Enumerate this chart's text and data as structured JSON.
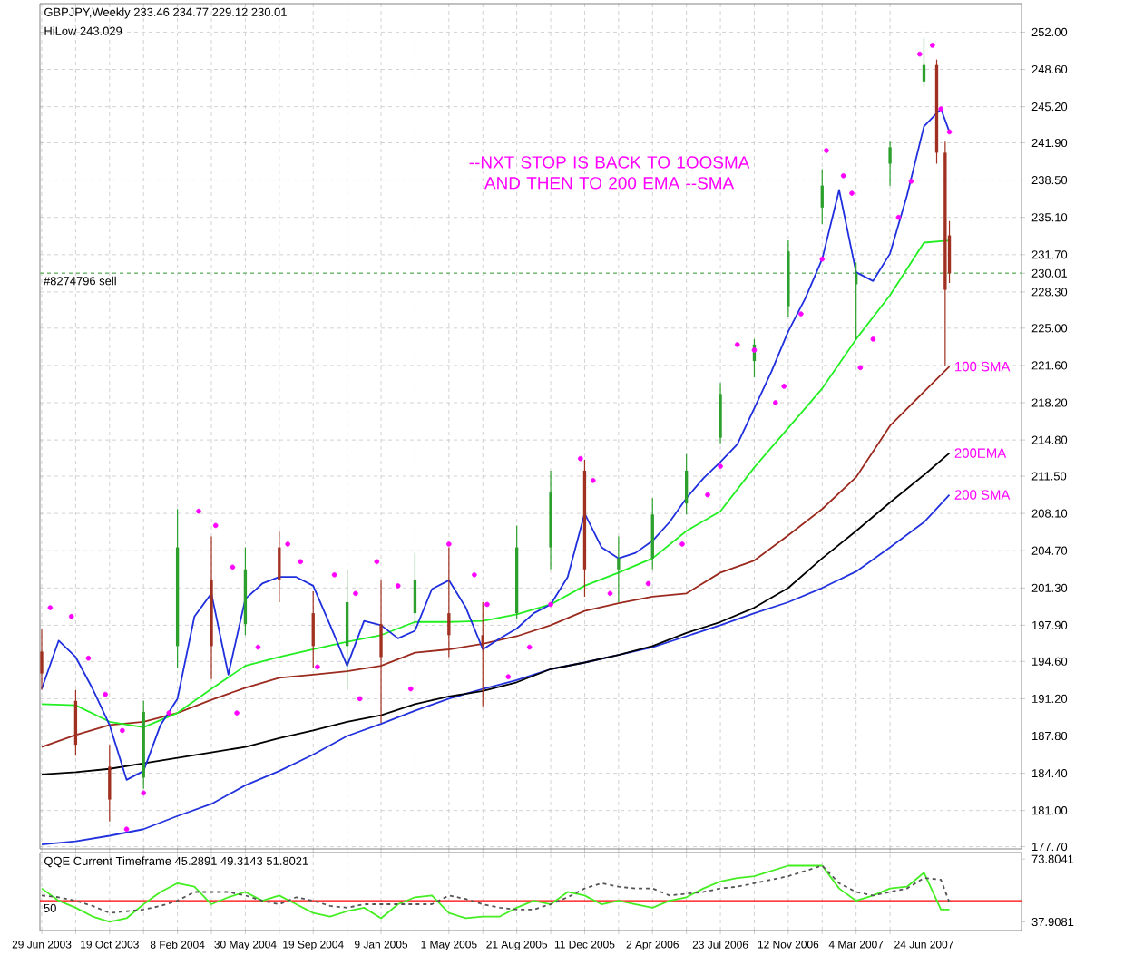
{
  "chart_data": [
    {
      "type": "candlestick",
      "title": "GBPJPY,Weekly  233.46 234.77 229.12 230.01",
      "subtitle": "HiLow 243.029",
      "annotations": [
        "--NXT STOP IS BACK TO 1OOSMA AND THEN TO 200 EMA --SMA"
      ],
      "x": [
        "2003-06-29",
        "2003-08-24",
        "2003-10-19",
        "2003-12-14",
        "2004-02-08",
        "2004-04-04",
        "2004-05-30",
        "2004-07-25",
        "2004-09-19",
        "2004-11-14",
        "2005-01-09",
        "2005-03-06",
        "2005-05-01",
        "2005-06-26",
        "2005-08-21",
        "2005-10-16",
        "2005-12-11",
        "2006-02-05",
        "2006-04-02",
        "2006-05-28",
        "2006-07-23",
        "2006-09-17",
        "2006-11-12",
        "2007-01-07",
        "2007-03-04",
        "2007-04-29",
        "2007-06-24",
        "2007-07-15",
        "2007-07-29",
        "2007-08-05"
      ],
      "ohlc": [
        [
          195.5,
          197.5,
          192,
          193.5
        ],
        [
          191,
          192,
          186,
          187
        ],
        [
          185,
          187,
          180,
          182
        ],
        [
          184,
          191,
          183,
          190
        ],
        [
          196,
          208.5,
          194,
          205
        ],
        [
          202,
          206,
          193,
          196
        ],
        [
          198,
          205,
          197,
          203
        ],
        [
          205,
          206.5,
          200,
          202
        ],
        [
          199,
          201,
          194,
          196
        ],
        [
          196,
          203,
          192,
          200
        ],
        [
          198,
          202,
          189,
          195
        ],
        [
          199,
          204.5,
          197.5,
          202
        ],
        [
          199,
          205,
          195,
          197
        ],
        [
          197,
          200,
          190.5,
          196
        ],
        [
          199,
          207,
          198.5,
          205
        ],
        [
          205,
          212,
          203,
          210
        ],
        [
          212,
          213,
          200.5,
          203
        ],
        [
          203,
          206,
          200,
          204
        ],
        [
          204,
          209.5,
          203,
          208
        ],
        [
          209,
          213.5,
          208,
          212
        ],
        [
          215,
          220,
          214.5,
          219
        ],
        [
          222,
          224,
          220.5,
          223.5
        ],
        [
          227,
          233,
          226,
          232
        ],
        [
          236,
          239.5,
          234.5,
          238
        ],
        [
          229,
          231,
          224,
          230
        ],
        [
          240,
          242,
          238,
          241.5
        ],
        [
          247.5,
          251.5,
          247,
          249
        ],
        [
          249,
          249.5,
          240,
          241
        ],
        [
          241,
          242,
          221.5,
          228.5
        ],
        [
          233.46,
          234.77,
          229.12,
          230.01
        ]
      ],
      "colors": [
        "#a03020",
        "#a03020",
        "#a03020",
        "#2ca02c",
        "#2ca02c",
        "#a03020",
        "#2ca02c",
        "#a03020",
        "#a03020",
        "#2ca02c",
        "#a03020",
        "#2ca02c",
        "#a03020",
        "#a03020",
        "#2ca02c",
        "#2ca02c",
        "#a03020",
        "#2ca02c",
        "#2ca02c",
        "#2ca02c",
        "#2ca02c",
        "#2ca02c",
        "#2ca02c",
        "#2ca02c",
        "#2ca02c",
        "#2ca02c",
        "#2ca02c",
        "#a03020",
        "#a03020",
        "#a03020"
      ],
      "series": [
        {
          "name": "200 SMA",
          "type": "line",
          "color": "#2233dd",
          "x": [
            "2003-06-29",
            "2003-08-24",
            "2003-10-19",
            "2003-12-14",
            "2004-02-08",
            "2004-04-04",
            "2004-05-30",
            "2004-07-25",
            "2004-09-19",
            "2004-11-14",
            "2005-01-09",
            "2005-03-06",
            "2005-05-01",
            "2005-06-26",
            "2005-08-21",
            "2005-10-16",
            "2005-12-11",
            "2006-02-05",
            "2006-04-02",
            "2006-05-28",
            "2006-07-23",
            "2006-09-17",
            "2006-11-12",
            "2007-01-07",
            "2007-03-04",
            "2007-04-29",
            "2007-06-24",
            "2007-08-05"
          ],
          "values": [
            177.9,
            178.2,
            178.7,
            179.3,
            180.5,
            181.6,
            183.3,
            184.6,
            186.1,
            187.8,
            188.9,
            190.1,
            191.2,
            192.1,
            192.9,
            193.9,
            194.5,
            195.2,
            195.9,
            196.9,
            197.9,
            199.0,
            200.0,
            201.3,
            202.8,
            205.0,
            207.3,
            209.8
          ]
        },
        {
          "name": "200EMA",
          "type": "line",
          "color": "#000000",
          "x": [
            "2003-06-29",
            "2003-08-24",
            "2003-10-19",
            "2003-12-14",
            "2004-02-08",
            "2004-04-04",
            "2004-05-30",
            "2004-07-25",
            "2004-09-19",
            "2004-11-14",
            "2005-01-09",
            "2005-03-06",
            "2005-05-01",
            "2005-06-26",
            "2005-08-21",
            "2005-10-16",
            "2005-12-11",
            "2006-02-05",
            "2006-04-02",
            "2006-05-28",
            "2006-07-23",
            "2006-09-17",
            "2006-11-12",
            "2007-01-07",
            "2007-03-04",
            "2007-04-29",
            "2007-06-24",
            "2007-08-05"
          ],
          "values": [
            184.3,
            184.5,
            184.8,
            185.3,
            185.8,
            186.3,
            186.8,
            187.6,
            188.3,
            189.1,
            189.7,
            190.7,
            191.4,
            191.9,
            192.7,
            193.9,
            194.5,
            195.2,
            196.0,
            197.2,
            198.2,
            199.5,
            201.3,
            204.0,
            206.5,
            209.1,
            211.6,
            213.6
          ]
        },
        {
          "name": "100 SMA",
          "type": "line",
          "color": "#9b2a1f",
          "x": [
            "2003-06-29",
            "2003-08-24",
            "2003-10-19",
            "2003-12-14",
            "2004-02-08",
            "2004-04-04",
            "2004-05-30",
            "2004-07-25",
            "2004-09-19",
            "2004-11-14",
            "2005-01-09",
            "2005-03-06",
            "2005-05-01",
            "2005-06-26",
            "2005-08-21",
            "2005-10-16",
            "2005-12-11",
            "2006-02-05",
            "2006-04-02",
            "2006-05-28",
            "2006-07-23",
            "2006-09-17",
            "2006-11-12",
            "2007-01-07",
            "2007-03-04",
            "2007-04-29",
            "2007-06-24",
            "2007-08-05"
          ],
          "values": [
            186.8,
            187.9,
            188.8,
            189.1,
            189.9,
            191.1,
            192.2,
            193.1,
            193.4,
            193.7,
            194.2,
            195.4,
            195.7,
            196.2,
            196.9,
            197.9,
            199.2,
            199.9,
            200.5,
            200.8,
            202.7,
            203.8,
            206.1,
            208.5,
            211.4,
            216.1,
            219.2,
            221.5
          ]
        },
        {
          "type": "line",
          "color": "#22ee22",
          "x": [
            "2003-06-29",
            "2003-08-24",
            "2003-10-19",
            "2003-12-14",
            "2004-02-08",
            "2004-04-04",
            "2004-05-30",
            "2004-07-25",
            "2004-09-19",
            "2004-11-14",
            "2005-01-09",
            "2005-03-06",
            "2005-05-01",
            "2005-06-26",
            "2005-08-21",
            "2005-10-16",
            "2005-12-11",
            "2006-02-05",
            "2006-04-02",
            "2006-05-28",
            "2006-07-23",
            "2006-09-17",
            "2006-11-12",
            "2007-01-07",
            "2007-03-04",
            "2007-04-29",
            "2007-06-24",
            "2007-08-05"
          ],
          "values": [
            190.7,
            190.6,
            189.1,
            188.6,
            189.9,
            192.1,
            194.2,
            195.0,
            195.7,
            196.4,
            197.0,
            198.2,
            198.2,
            198.3,
            198.9,
            199.8,
            201.5,
            202.7,
            204.0,
            206.5,
            208.3,
            212.3,
            215.9,
            219.5,
            224.0,
            228.0,
            232.8,
            233.0
          ]
        },
        {
          "type": "line",
          "color": "#1f2fdd",
          "x": [
            "2003-06-29",
            "2003-07-27",
            "2003-08-24",
            "2003-09-21",
            "2003-10-19",
            "2003-11-16",
            "2003-12-14",
            "2004-01-11",
            "2004-02-08",
            "2004-03-07",
            "2004-04-04",
            "2004-05-02",
            "2004-05-30",
            "2004-06-27",
            "2004-07-25",
            "2004-08-22",
            "2004-09-19",
            "2004-10-17",
            "2004-11-14",
            "2004-12-12",
            "2005-01-09",
            "2005-02-06",
            "2005-03-06",
            "2005-04-03",
            "2005-05-01",
            "2005-05-29",
            "2005-06-26",
            "2005-07-24",
            "2005-08-21",
            "2005-09-18",
            "2005-10-16",
            "2005-11-13",
            "2005-12-11",
            "2006-01-08",
            "2006-02-05",
            "2006-03-05",
            "2006-04-02",
            "2006-04-30",
            "2006-05-28",
            "2006-06-25",
            "2006-07-23",
            "2006-08-20",
            "2006-09-17",
            "2006-10-15",
            "2006-11-12",
            "2006-12-10",
            "2007-01-07",
            "2007-02-04",
            "2007-03-04",
            "2007-04-01",
            "2007-04-29",
            "2007-05-27",
            "2007-06-24",
            "2007-07-22",
            "2007-08-05"
          ],
          "values": [
            192.1,
            196.5,
            195.0,
            192.1,
            188.8,
            183.8,
            184.6,
            188.8,
            191.2,
            198.7,
            200.8,
            193.4,
            200.3,
            201.7,
            202.3,
            202.3,
            201.5,
            197.9,
            194.2,
            198.3,
            197.9,
            196.7,
            197.4,
            201.2,
            202.0,
            199.5,
            195.7,
            196.7,
            197.6,
            199.0,
            199.8,
            202.3,
            208.1,
            205.0,
            204.0,
            204.5,
            205.6,
            207.3,
            209.5,
            211.3,
            212.8,
            214.4,
            217.7,
            221.0,
            224.7,
            227.7,
            231.3,
            237.6,
            230.1,
            229.3,
            231.8,
            237.1,
            243.4,
            245.0,
            242.9
          ]
        },
        {
          "type": "scatter",
          "marker": "circle",
          "color": "#ff00ff",
          "x": [
            "2003-07-13",
            "2003-08-17",
            "2003-09-14",
            "2003-10-12",
            "2003-11-09",
            "2003-11-16",
            "2003-12-14",
            "2004-01-25",
            "2004-03-14",
            "2004-04-11",
            "2004-05-09",
            "2004-05-16",
            "2004-06-20",
            "2004-08-08",
            "2004-08-29",
            "2004-09-26",
            "2004-10-24",
            "2004-11-28",
            "2004-12-05",
            "2005-01-02",
            "2005-02-06",
            "2005-02-27",
            "2005-05-01",
            "2005-06-12",
            "2005-07-03",
            "2005-08-07",
            "2005-09-11",
            "2005-10-16",
            "2005-12-04",
            "2005-12-25",
            "2006-01-22",
            "2006-03-26",
            "2006-05-21",
            "2006-07-02",
            "2006-07-23",
            "2006-08-20",
            "2006-09-17",
            "2006-10-22",
            "2006-11-05",
            "2006-12-03",
            "2007-01-07",
            "2007-01-14",
            "2007-02-11",
            "2007-02-25",
            "2007-03-11",
            "2007-04-01",
            "2007-05-13",
            "2007-06-03",
            "2007-06-17",
            "2007-07-08",
            "2007-07-22",
            "2007-08-05"
          ],
          "values": [
            199.5,
            198.7,
            194.9,
            191.6,
            188.3,
            179.3,
            182.6,
            189.9,
            208.3,
            207.0,
            203.2,
            189.9,
            195.9,
            205.3,
            203.7,
            194.1,
            202.5,
            200.8,
            191.2,
            203.7,
            201.5,
            192.1,
            205.3,
            202.5,
            199.8,
            193.2,
            195.9,
            199.8,
            213.1,
            211.1,
            200.8,
            201.7,
            205.3,
            209.8,
            212.4,
            223.5,
            223.0,
            218.2,
            219.7,
            226.3,
            231.3,
            241.2,
            238.9,
            237.3,
            221.4,
            224.0,
            235.1,
            238.4,
            250.0,
            250.8,
            245.0,
            242.9
          ]
        }
      ],
      "ref_lines": [
        {
          "axis": "y",
          "value": 230.01,
          "label": "#8274796 sell",
          "color": "#77bb77",
          "line_style": "dashed"
        }
      ],
      "xlim": [
        "2003-06-26",
        "2007-12-02"
      ],
      "ylim": [
        177.5,
        254.6
      ],
      "xticks": [
        {
          "value": "2003-06-29",
          "label": null
        },
        {
          "value": "2003-08-24",
          "label": null
        },
        {
          "value": "2003-10-19",
          "label": null
        },
        {
          "value": "2003-12-14",
          "label": null
        },
        {
          "value": "2004-02-08",
          "label": null
        },
        {
          "value": "2004-04-04",
          "label": null
        },
        {
          "value": "2004-05-30",
          "label": null
        },
        {
          "value": "2004-07-25",
          "label": null
        },
        {
          "value": "2004-09-19",
          "label": null
        },
        {
          "value": "2004-11-14",
          "label": null
        },
        {
          "value": "2005-01-09",
          "label": null
        },
        {
          "value": "2005-03-06",
          "label": null
        },
        {
          "value": "2005-05-01",
          "label": null
        },
        {
          "value": "2005-06-26",
          "label": null
        },
        {
          "value": "2005-08-21",
          "label": null
        },
        {
          "value": "2005-10-16",
          "label": null
        },
        {
          "value": "2005-12-11",
          "label": null
        },
        {
          "value": "2006-02-05",
          "label": null
        },
        {
          "value": "2006-04-02",
          "label": null
        },
        {
          "value": "2006-05-28",
          "label": null
        },
        {
          "value": "2006-07-23",
          "label": null
        },
        {
          "value": "2006-09-17",
          "label": null
        },
        {
          "value": "2006-11-12",
          "label": null
        },
        {
          "value": "2007-01-07",
          "label": null
        },
        {
          "value": "2007-03-04",
          "label": null
        },
        {
          "value": "2007-04-29",
          "label": null
        },
        {
          "value": "2007-06-24",
          "label": null
        }
      ],
      "yticks": [
        {
          "value": 177.7,
          "label": "177.70"
        },
        {
          "value": 181.0,
          "label": "181.00"
        },
        {
          "value": 184.4,
          "label": "184.40"
        },
        {
          "value": 187.8,
          "label": "187.80"
        },
        {
          "value": 191.2,
          "label": "191.20"
        },
        {
          "value": 194.6,
          "label": "194.60"
        },
        {
          "value": 197.9,
          "label": "197.90"
        },
        {
          "value": 201.3,
          "label": "201.30"
        },
        {
          "value": 204.7,
          "label": "204.70"
        },
        {
          "value": 208.1,
          "label": "208.10"
        },
        {
          "value": 211.5,
          "label": "211.50"
        },
        {
          "value": 214.8,
          "label": "214.80"
        },
        {
          "value": 218.2,
          "label": "218.20"
        },
        {
          "value": 221.6,
          "label": "221.60"
        },
        {
          "value": 225.0,
          "label": "225.00"
        },
        {
          "value": 228.3,
          "label": "228.30"
        },
        {
          "value": 230.01,
          "label": "230.01"
        },
        {
          "value": 231.7,
          "label": "231.70"
        },
        {
          "value": 235.1,
          "label": "235.10"
        },
        {
          "value": 238.5,
          "label": "238.50"
        },
        {
          "value": 241.9,
          "label": "241.90"
        },
        {
          "value": 245.2,
          "label": "245.20"
        },
        {
          "value": 248.6,
          "label": "248.60"
        },
        {
          "value": 252.0,
          "label": "252.00"
        }
      ],
      "grid": true,
      "tick_labels": "y"
    },
    {
      "type": "line",
      "title": "QQE Current Timeframe 45.2891 49.3143 51.8021",
      "x": [
        "2003-06-29",
        "2003-07-27",
        "2003-08-24",
        "2003-09-21",
        "2003-10-19",
        "2003-11-16",
        "2003-12-14",
        "2004-01-11",
        "2004-02-08",
        "2004-03-07",
        "2004-04-04",
        "2004-05-02",
        "2004-05-30",
        "2004-06-27",
        "2004-07-25",
        "2004-08-22",
        "2004-09-19",
        "2004-10-17",
        "2004-11-14",
        "2004-12-12",
        "2005-01-09",
        "2005-02-06",
        "2005-03-06",
        "2005-04-03",
        "2005-05-01",
        "2005-05-29",
        "2005-06-26",
        "2005-07-24",
        "2005-08-21",
        "2005-09-18",
        "2005-10-16",
        "2005-11-13",
        "2005-12-11",
        "2006-01-08",
        "2006-02-05",
        "2006-03-05",
        "2006-04-02",
        "2006-04-30",
        "2006-05-28",
        "2006-06-25",
        "2006-07-23",
        "2006-08-20",
        "2006-09-17",
        "2006-10-15",
        "2006-11-12",
        "2006-12-10",
        "2007-01-07",
        "2007-02-04",
        "2007-03-04",
        "2007-04-01",
        "2007-04-29",
        "2007-05-27",
        "2007-06-24",
        "2007-07-22",
        "2007-08-05"
      ],
      "series": [
        {
          "color": "#44ee22",
          "values": [
            57,
            50,
            46,
            41,
            38,
            40,
            48,
            55,
            60,
            58,
            48,
            52,
            55,
            50,
            53,
            48,
            43,
            41,
            44,
            46,
            40,
            48,
            52,
            53,
            43,
            40,
            41,
            41,
            46,
            50,
            48,
            55,
            53,
            48,
            50,
            48,
            46,
            50,
            52,
            57,
            61,
            63,
            64,
            67,
            70,
            70,
            70,
            57,
            50,
            53,
            57,
            58,
            66,
            45,
            45
          ]
        },
        {
          "color": "#555555",
          "line_style": "dashed",
          "values": [
            53,
            52,
            50,
            47,
            43,
            44,
            45,
            47,
            50,
            55,
            55,
            55,
            53,
            50,
            48,
            52,
            50,
            47,
            46,
            48,
            48,
            48,
            48,
            48,
            53,
            51,
            48,
            46,
            45,
            45,
            48,
            52,
            57,
            60,
            58,
            57,
            57,
            53,
            54,
            55,
            57,
            58,
            60,
            62,
            64,
            67,
            70,
            60,
            55,
            53,
            55,
            57,
            63,
            62,
            49
          ]
        }
      ],
      "ref_lines": [
        {
          "axis": "y",
          "value": 50,
          "label": "50",
          "color": "#ff0000"
        }
      ],
      "xlim": [
        "2003-06-26",
        "2007-12-02"
      ],
      "ylim": [
        33,
        77.5
      ],
      "xticks": [
        {
          "value": "2003-06-29",
          "label": "29 Jun 2003"
        },
        {
          "value": "2003-08-24",
          "label": null
        },
        {
          "value": "2003-10-19",
          "label": "19 Oct 2003"
        },
        {
          "value": "2003-12-14",
          "label": null
        },
        {
          "value": "2004-02-08",
          "label": "8 Feb 2004"
        },
        {
          "value": "2004-04-04",
          "label": null
        },
        {
          "value": "2004-05-30",
          "label": "30 May 2004"
        },
        {
          "value": "2004-07-25",
          "label": null
        },
        {
          "value": "2004-09-19",
          "label": "19 Sep 2004"
        },
        {
          "value": "2004-11-14",
          "label": null
        },
        {
          "value": "2005-01-09",
          "label": "9 Jan 2005"
        },
        {
          "value": "2005-03-06",
          "label": null
        },
        {
          "value": "2005-05-01",
          "label": "1 May 2005"
        },
        {
          "value": "2005-06-26",
          "label": null
        },
        {
          "value": "2005-08-21",
          "label": "21 Aug 2005"
        },
        {
          "value": "2005-10-16",
          "label": null
        },
        {
          "value": "2005-12-11",
          "label": "11 Dec 2005"
        },
        {
          "value": "2006-02-05",
          "label": null
        },
        {
          "value": "2006-04-02",
          "label": "2 Apr 2006"
        },
        {
          "value": "2006-05-28",
          "label": null
        },
        {
          "value": "2006-07-23",
          "label": "23 Jul 2006"
        },
        {
          "value": "2006-09-17",
          "label": null
        },
        {
          "value": "2006-11-12",
          "label": "12 Nov 2006"
        },
        {
          "value": "2007-01-07",
          "label": null
        },
        {
          "value": "2007-03-04",
          "label": "4 Mar 2007"
        },
        {
          "value": "2007-04-29",
          "label": null
        },
        {
          "value": "2007-06-24",
          "label": "24 Jun 2007"
        }
      ],
      "yticks": [
        37.9081,
        73.8041
      ],
      "grid": "x"
    }
  ]
}
